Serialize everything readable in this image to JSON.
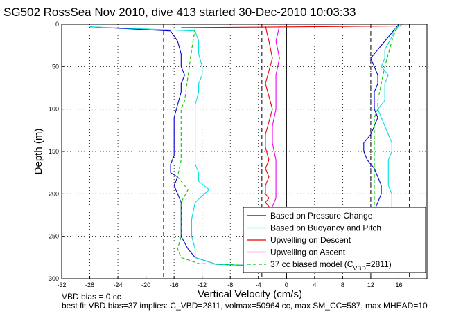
{
  "chart_data": {
    "type": "line",
    "title": "SG502 RossSea Nov 2010, dive 413 started 30-Dec-2010 10:03:33",
    "xlabel": "Vertical Velocity (cm/s)",
    "ylabel": "Depth (m)",
    "xlim": [
      -32,
      20
    ],
    "ylim": [
      0,
      300
    ],
    "y_reversed": true,
    "grid": true,
    "legend_position": "bottom-right",
    "x_ticks": [
      "-32",
      "-28",
      "-24",
      "-20",
      "-16",
      "-12",
      "-8",
      "-4",
      "0",
      "4",
      "8",
      "12",
      "16"
    ],
    "y_ticks": [
      "0",
      "50",
      "100",
      "150",
      "200",
      "250",
      "300"
    ],
    "reference_lines_x": [
      -17.5,
      -3.5,
      12,
      17.5
    ],
    "series": [
      {
        "name": "Based on Pressure Change",
        "color": "#0000cc",
        "x": [
          -28,
          -16.5,
          -15.5,
          -15,
          -15,
          -14.5,
          -15,
          -15,
          -15.5,
          -16,
          -16,
          -16,
          -16,
          -16.5,
          -16.5,
          -15.5,
          -16,
          -15,
          -15,
          -15,
          -14,
          -13,
          -10,
          -3,
          0
        ],
        "y": [
          3,
          8,
          20,
          35,
          50,
          60,
          70,
          80,
          95,
          110,
          125,
          140,
          155,
          165,
          175,
          180,
          190,
          210,
          230,
          250,
          265,
          275,
          283,
          285,
          285
        ],
        "x_ascent": [
          12.5,
          13,
          13.5,
          13.5,
          13,
          12.5,
          11.5,
          11,
          11,
          12,
          12.5,
          13,
          12.5,
          12.5,
          12.5,
          13,
          13,
          12.5,
          12,
          13,
          14.5,
          15.5,
          16
        ],
        "y_ascent": [
          220,
          210,
          200,
          190,
          180,
          170,
          160,
          150,
          140,
          130,
          120,
          110,
          100,
          90,
          80,
          70,
          60,
          50,
          40,
          30,
          15,
          5,
          0
        ]
      },
      {
        "name": "Based on Buoyancy and Pitch",
        "color": "#00e0e0",
        "x": [
          -28,
          -13,
          -12.5,
          -12.5,
          -12,
          -12,
          -12.5,
          -12.5,
          -13,
          -13,
          -13,
          -13,
          -13,
          -13,
          -12.5,
          -12.5,
          -11,
          -13,
          -13.5,
          -13.5,
          -13,
          -13,
          -10,
          -3,
          0
        ],
        "y": [
          3,
          8,
          20,
          35,
          50,
          60,
          70,
          80,
          95,
          110,
          125,
          140,
          155,
          165,
          175,
          185,
          195,
          210,
          230,
          250,
          265,
          275,
          283,
          285,
          285
        ],
        "x_ascent": [
          15,
          15,
          15,
          14.5,
          14.5,
          14.5,
          14.5,
          15,
          15,
          14.5,
          14,
          13.5,
          13,
          14,
          14,
          14,
          14.5,
          13.5,
          14,
          14,
          15,
          15.5,
          16.5
        ],
        "y_ascent": [
          220,
          210,
          200,
          190,
          180,
          170,
          160,
          150,
          140,
          130,
          120,
          110,
          100,
          90,
          80,
          70,
          60,
          50,
          40,
          30,
          15,
          5,
          0
        ]
      },
      {
        "name": "Upwelling on Descent",
        "color": "#ee0000",
        "x": [
          -3,
          -2.5,
          -2,
          -2.5,
          -3,
          -2.5,
          -2,
          -2.5,
          -3,
          -3,
          -2.5,
          -3,
          -2.5,
          -3,
          -3,
          -2.5,
          -3,
          -2.5,
          -3
        ],
        "y": [
          2,
          20,
          40,
          55,
          70,
          85,
          100,
          115,
          130,
          145,
          160,
          170,
          180,
          190,
          200,
          205,
          210,
          215,
          220
        ],
        "x_top": [
          -15,
          17.5
        ],
        "y_top": [
          4,
          2
        ]
      },
      {
        "name": "Upwelling on Ascent",
        "color": "#ee00ee",
        "x": [
          -1,
          -1.5,
          -1,
          -1.5,
          -1.5,
          -1.5,
          -2,
          -2,
          -1.5,
          -1.5,
          -1.5,
          -1.5,
          -2,
          -2
        ],
        "y": [
          2,
          20,
          40,
          60,
          80,
          100,
          120,
          140,
          160,
          180,
          195,
          205,
          215,
          220
        ]
      },
      {
        "name": "37 cc biased model (C_VBD=2811)",
        "color": "#00cc00",
        "dashed": true,
        "x": [
          -13,
          -13.5,
          -14,
          -14.5,
          -15,
          -15,
          -15,
          -15.5,
          -14,
          -15,
          -15,
          -15,
          -15.5,
          -15,
          -12.5,
          -3,
          0
        ],
        "y": [
          5,
          30,
          60,
          90,
          100,
          130,
          160,
          180,
          195,
          210,
          230,
          250,
          265,
          275,
          282,
          285,
          285
        ],
        "x_ascent": [
          12.5,
          12.5,
          12.5,
          12.5,
          12.5,
          12.5,
          12.5,
          13,
          13,
          13.5,
          14,
          14.5,
          15,
          15.5,
          16
        ],
        "y_ascent": [
          220,
          210,
          190,
          170,
          150,
          130,
          110,
          100,
          90,
          70,
          50,
          35,
          20,
          8,
          2
        ]
      }
    ],
    "legend_entries": [
      {
        "series": 0,
        "label": "Based on Pressure Change"
      },
      {
        "series": 1,
        "label": "Based on Buoyancy and Pitch"
      },
      {
        "series": 2,
        "label": "Upwelling on Descent"
      },
      {
        "series": 3,
        "label": "Upwelling on Ascent"
      },
      {
        "series": 4,
        "label": "37 cc biased model (C",
        "sub": "VBD",
        "suffix": "=2811)"
      }
    ]
  },
  "footnote": {
    "line1": "VBD bias = 0 cc",
    "line2": "best fit VBD bias=37 implies: C_VBD=2811, volmax=50964 cc, max SM_CC=587, max MHEAD=10"
  }
}
